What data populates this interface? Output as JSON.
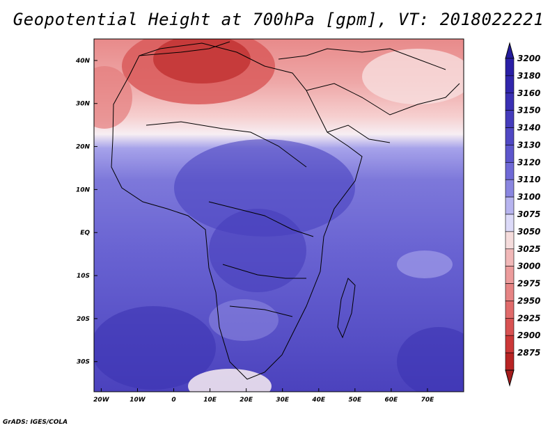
{
  "title": "Geopotential Height at 700hPa [gpm], VT: 2018022221",
  "credit": "GrADS: IGES/COLA",
  "map": {
    "lon_range": [
      -22,
      80
    ],
    "lat_range": [
      -37,
      45
    ],
    "lon_ticks": [
      {
        "value": -20,
        "label": "20W"
      },
      {
        "value": -10,
        "label": "10W"
      },
      {
        "value": 0,
        "label": "0"
      },
      {
        "value": 10,
        "label": "10E"
      },
      {
        "value": 20,
        "label": "20E"
      },
      {
        "value": 30,
        "label": "30E"
      },
      {
        "value": 40,
        "label": "40E"
      },
      {
        "value": 50,
        "label": "50E"
      },
      {
        "value": 60,
        "label": "60E"
      },
      {
        "value": 70,
        "label": "70E"
      }
    ],
    "lat_ticks": [
      {
        "value": 40,
        "label": "40N"
      },
      {
        "value": 30,
        "label": "30N"
      },
      {
        "value": 20,
        "label": "20N"
      },
      {
        "value": 10,
        "label": "10N"
      },
      {
        "value": 0,
        "label": "EQ"
      },
      {
        "value": -10,
        "label": "10S"
      },
      {
        "value": -20,
        "label": "20S"
      },
      {
        "value": -30,
        "label": "30S"
      }
    ]
  },
  "colorbar": {
    "levels": [
      {
        "label": "3200",
        "color": "#2a1fa6"
      },
      {
        "label": "3180",
        "color": "#3126ac"
      },
      {
        "label": "3160",
        "color": "#3a30b4"
      },
      {
        "label": "3150",
        "color": "#453cbc"
      },
      {
        "label": "3140",
        "color": "#5048c4"
      },
      {
        "label": "3130",
        "color": "#5d56cc"
      },
      {
        "label": "3120",
        "color": "#6f69d6"
      },
      {
        "label": "3110",
        "color": "#8a86e0"
      },
      {
        "label": "3100",
        "color": "#b7b4ef"
      },
      {
        "label": "3075",
        "color": "#dcdaf8"
      },
      {
        "label": "3050",
        "color": "#f5dcdc"
      },
      {
        "label": "3025",
        "color": "#f1b8b8"
      },
      {
        "label": "3000",
        "color": "#ec9c9c"
      },
      {
        "label": "2975",
        "color": "#e68484"
      },
      {
        "label": "2950",
        "color": "#e06b6b"
      },
      {
        "label": "2925",
        "color": "#d85252"
      },
      {
        "label": "2900",
        "color": "#cc3838"
      },
      {
        "label": "2875",
        "color": "#b82424"
      }
    ],
    "top_color": "#241b9c",
    "bottom_color": "#a51c1c"
  }
}
